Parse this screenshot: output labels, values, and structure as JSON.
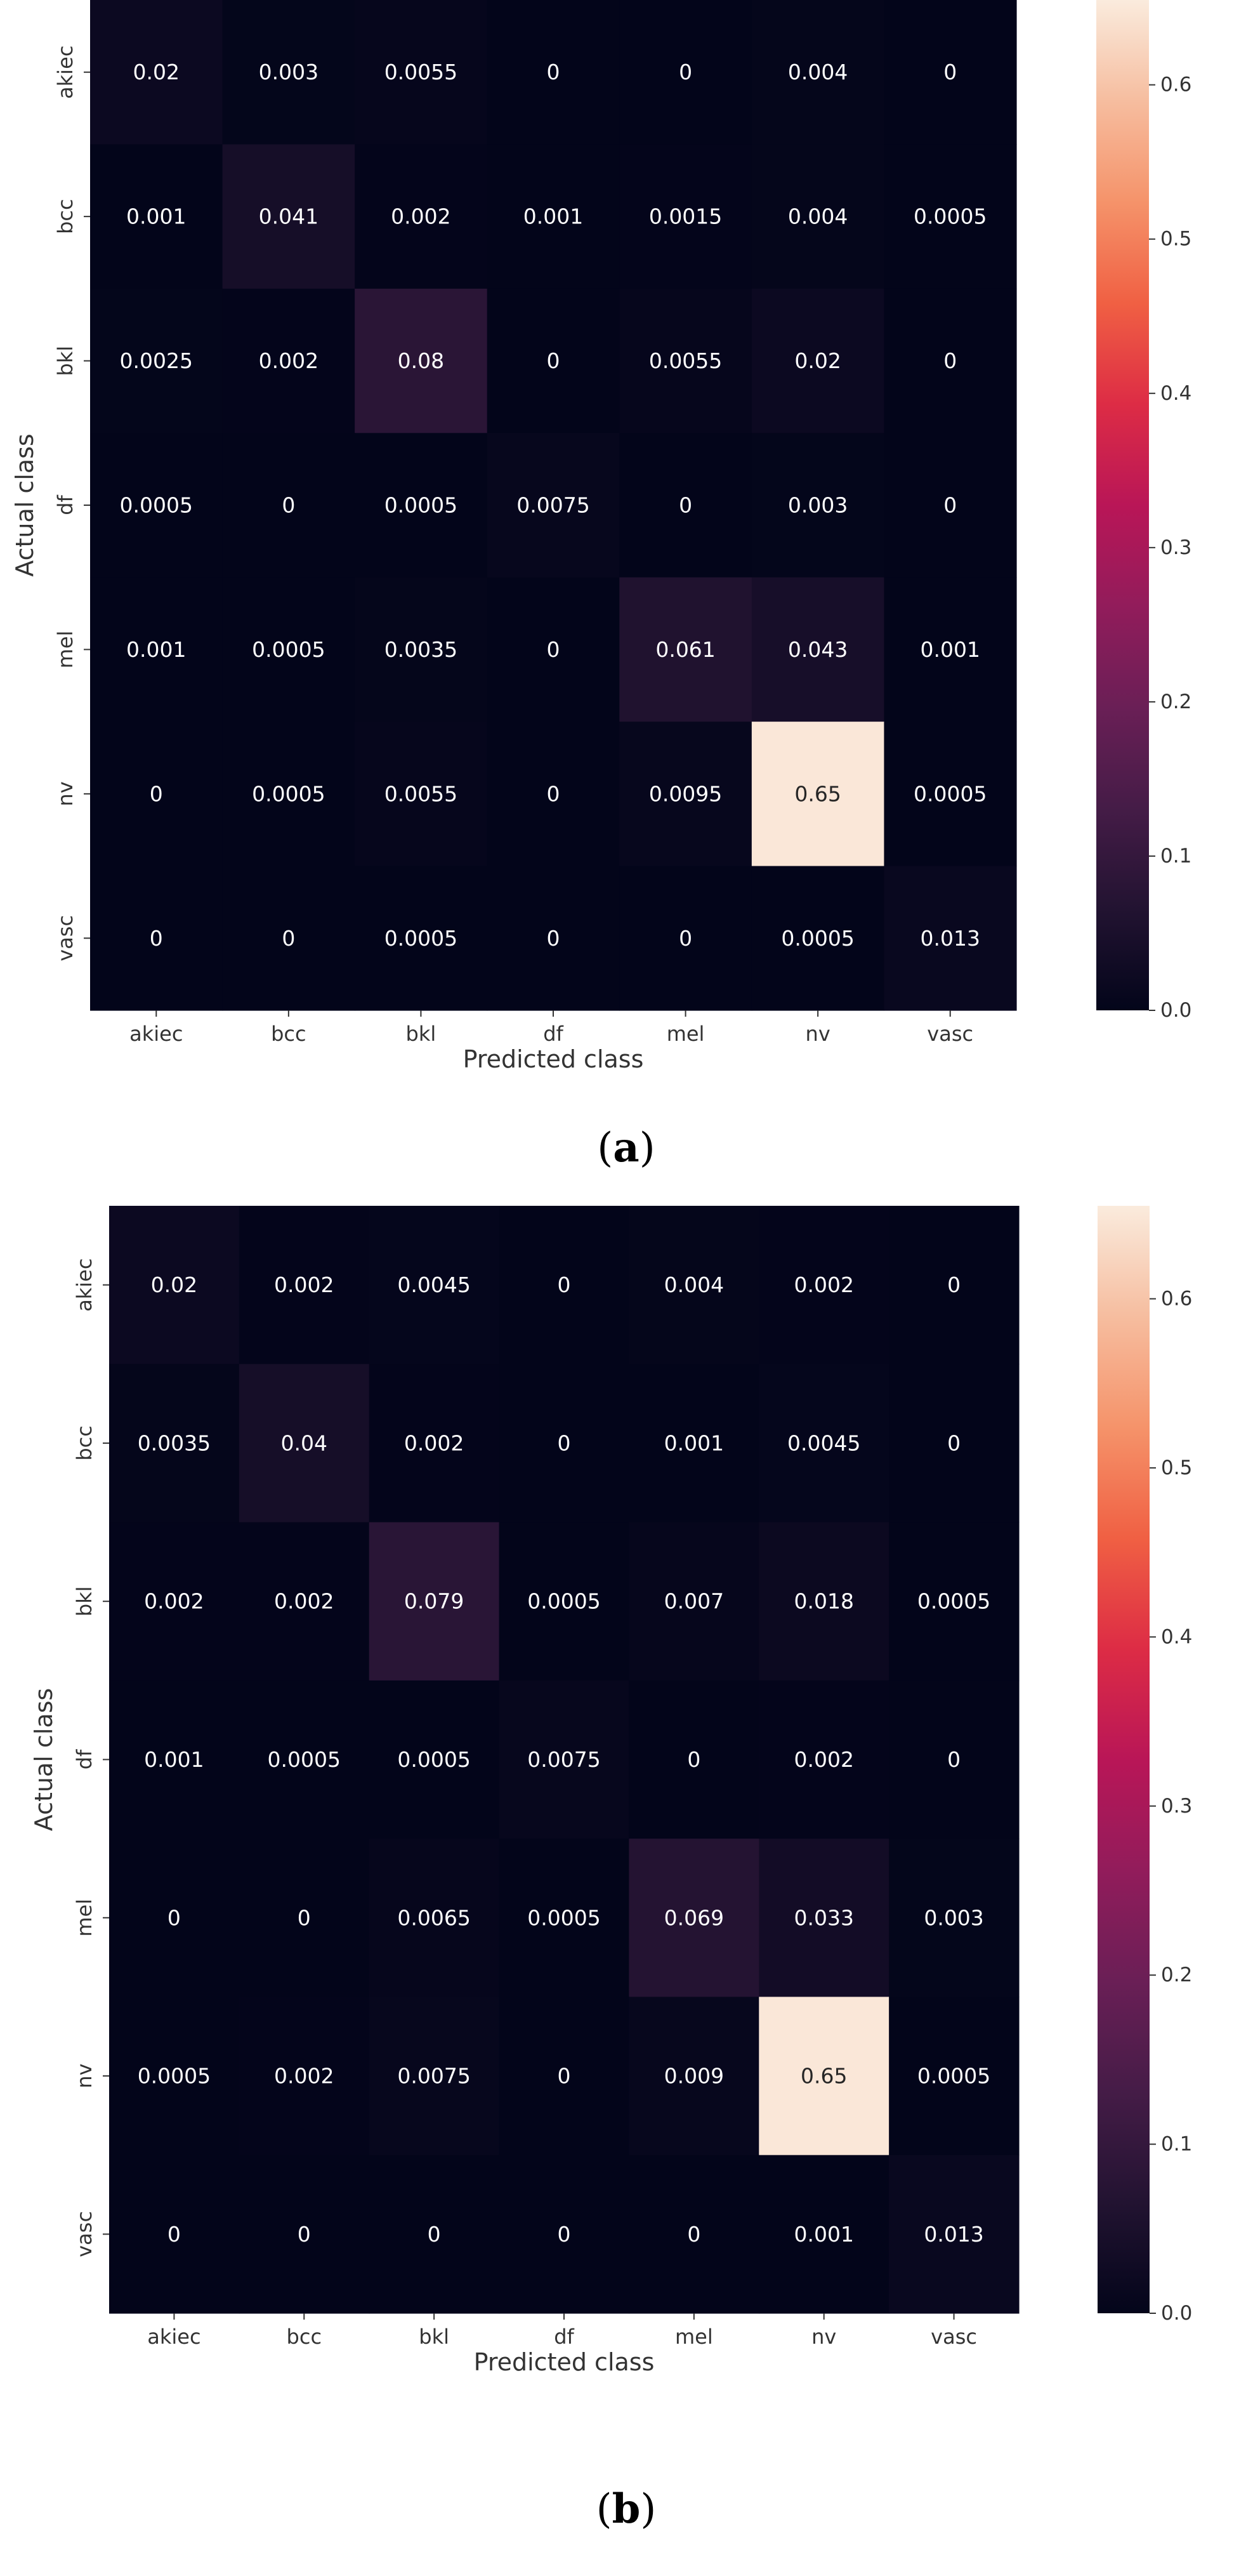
{
  "chart_data": [
    {
      "type": "heatmap",
      "caption": "(a)",
      "caption_letter": "a",
      "xlabel": "Predicted class",
      "ylabel": "Actual class",
      "x_categories": [
        "akiec",
        "bcc",
        "bkl",
        "df",
        "mel",
        "nv",
        "vasc"
      ],
      "y_categories": [
        "akiec",
        "bcc",
        "bkl",
        "df",
        "mel",
        "nv",
        "vasc"
      ],
      "values": [
        [
          "0.02",
          "0.003",
          "0.0055",
          "0",
          "0",
          "0.004",
          "0"
        ],
        [
          "0.001",
          "0.041",
          "0.002",
          "0.001",
          "0.0015",
          "0.004",
          "0.0005"
        ],
        [
          "0.0025",
          "0.002",
          "0.08",
          "0",
          "0.0055",
          "0.02",
          "0"
        ],
        [
          "0.0005",
          "0",
          "0.0005",
          "0.0075",
          "0",
          "0.003",
          "0"
        ],
        [
          "0.001",
          "0.0005",
          "0.0035",
          "0",
          "0.061",
          "0.043",
          "0.001"
        ],
        [
          "0",
          "0.0005",
          "0.0055",
          "0",
          "0.0095",
          "0.65",
          "0.0005"
        ],
        [
          "0",
          "0",
          "0.0005",
          "0",
          "0",
          "0.0005",
          "0.013"
        ]
      ],
      "colorbar": {
        "min": 0.0,
        "max": 0.655,
        "ticks": [
          "0.0",
          "0.1",
          "0.2",
          "0.3",
          "0.4",
          "0.5",
          "0.6"
        ]
      },
      "colormap": "rocket"
    },
    {
      "type": "heatmap",
      "caption": "(b)",
      "caption_letter": "b",
      "xlabel": "Predicted class",
      "ylabel": "Actual class",
      "x_categories": [
        "akiec",
        "bcc",
        "bkl",
        "df",
        "mel",
        "nv",
        "vasc"
      ],
      "y_categories": [
        "akiec",
        "bcc",
        "bkl",
        "df",
        "mel",
        "nv",
        "vasc"
      ],
      "values": [
        [
          "0.02",
          "0.002",
          "0.0045",
          "0",
          "0.004",
          "0.002",
          "0"
        ],
        [
          "0.0035",
          "0.04",
          "0.002",
          "0",
          "0.001",
          "0.0045",
          "0"
        ],
        [
          "0.002",
          "0.002",
          "0.079",
          "0.0005",
          "0.007",
          "0.018",
          "0.0005"
        ],
        [
          "0.001",
          "0.0005",
          "0.0005",
          "0.0075",
          "0",
          "0.002",
          "0"
        ],
        [
          "0",
          "0",
          "0.0065",
          "0.0005",
          "0.069",
          "0.033",
          "0.003"
        ],
        [
          "0.0005",
          "0.002",
          "0.0075",
          "0",
          "0.009",
          "0.65",
          "0.0005"
        ],
        [
          "0",
          "0",
          "0",
          "0",
          "0",
          "0.001",
          "0.013"
        ]
      ],
      "colorbar": {
        "min": 0.0,
        "max": 0.655,
        "ticks": [
          "0.0",
          "0.1",
          "0.2",
          "0.3",
          "0.4",
          "0.5",
          "0.6"
        ]
      },
      "colormap": "rocket"
    }
  ]
}
